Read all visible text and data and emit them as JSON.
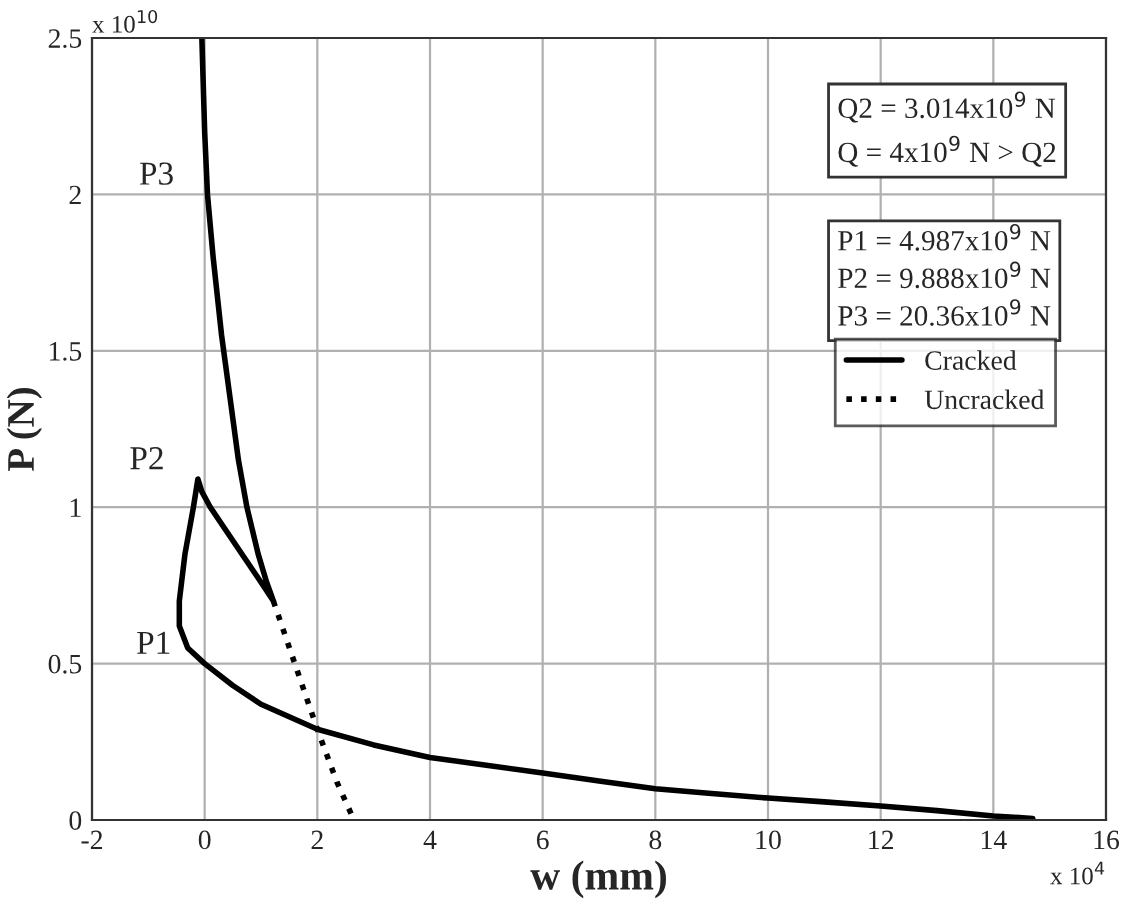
{
  "chart_data": {
    "type": "line",
    "xlabel": "w (mm)",
    "ylabel": "P (N)",
    "xlim": [
      -2,
      16
    ],
    "xticks": [
      -2,
      0,
      2,
      4,
      6,
      8,
      10,
      12,
      14,
      16
    ],
    "ylim": [
      0,
      2.5
    ],
    "yticks": [
      0,
      0.5,
      1,
      1.5,
      2,
      2.5
    ],
    "grid": true,
    "legend": "top right",
    "series": [
      {
        "name": "Cracked",
        "color": "#000000",
        "line_style": "solid",
        "x": [
          -0.05,
          0.0,
          0.05,
          0.15,
          0.3,
          0.45,
          0.6,
          0.75,
          0.95,
          1.1,
          1.22,
          1.0,
          0.7,
          0.4,
          0.1,
          -0.05,
          -0.12,
          -0.2,
          -0.35,
          -0.45,
          -0.45,
          -0.3,
          0.0,
          0.5,
          1.0,
          2.0,
          3.0,
          4.0,
          5.0,
          6.0,
          7.0,
          8.0,
          9.0,
          10.0,
          11.0,
          12.0,
          13.0,
          14.0,
          14.7
        ],
        "values": [
          2.5,
          2.2,
          2.0,
          1.8,
          1.55,
          1.35,
          1.15,
          1.0,
          0.85,
          0.76,
          0.7,
          0.76,
          0.84,
          0.92,
          1.0,
          1.05,
          1.09,
          1.0,
          0.85,
          0.7,
          0.62,
          0.55,
          0.5,
          0.43,
          0.37,
          0.29,
          0.24,
          0.2,
          0.175,
          0.15,
          0.125,
          0.1,
          0.085,
          0.07,
          0.058,
          0.045,
          0.03,
          0.013,
          0.005
        ]
      },
      {
        "name": "Uncracked",
        "color": "#000000",
        "line_style": "dotted",
        "x": [
          1.22,
          1.6,
          2.0,
          2.35,
          2.65
        ],
        "values": [
          0.7,
          0.5,
          0.29,
          0.12,
          0.0
        ]
      }
    ],
    "annotations": [
      "x 10$^{10}$",
      "x 10$^{4}$",
      "Q2 = 3.014x10$^{9}$ N\nQ = 4x10$^{9}$ N > Q2",
      "P1 = 4.987x10$^{9}$ N\nP2 = 9.888x10$^{9}$ N\nP3 = 20.36x10$^{9}$ N",
      {
        "text": "P3",
        "x": 0.05,
        "y": 2.0
      },
      {
        "text": "P2",
        "x": -0.12,
        "y": 1.09
      },
      {
        "text": "P1",
        "x": 0.0,
        "y": 0.5
      }
    ]
  }
}
